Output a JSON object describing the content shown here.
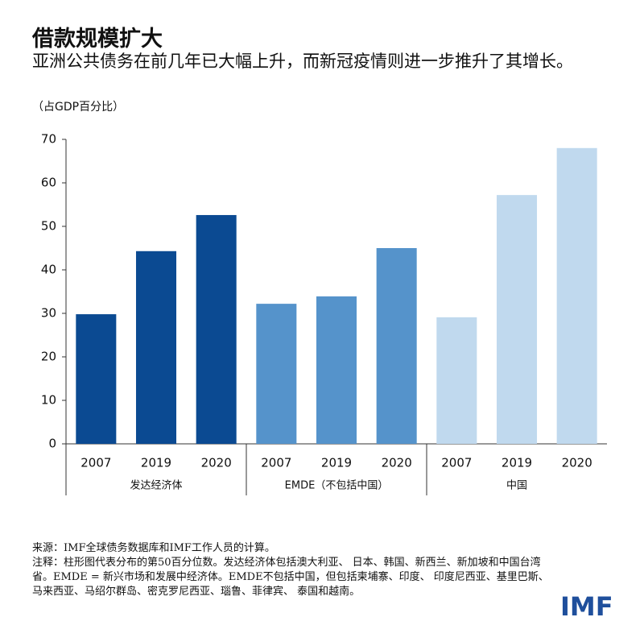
{
  "chart_data": {
    "type": "bar",
    "title": "借款规模扩大",
    "subtitle": "亚洲公共债务在前几年已大幅上升，而新冠疫情则进一步推升了其增长。",
    "unit": "（占GDP百分比）",
    "groups": [
      {
        "name": "发达经济体",
        "color": "#0b4a92",
        "categories": [
          "2007",
          "2019",
          "2020"
        ],
        "values": [
          29.8,
          44.3,
          52.6
        ]
      },
      {
        "name": "EMDE（不包括中国）",
        "color": "#5593cb",
        "categories": [
          "2007",
          "2019",
          "2020"
        ],
        "values": [
          32.2,
          33.9,
          45.0
        ]
      },
      {
        "name": "中国",
        "color": "#c0d9ee",
        "categories": [
          "2007",
          "2019",
          "2020"
        ],
        "values": [
          29.1,
          57.2,
          68.0
        ]
      }
    ],
    "ylim": [
      0,
      70
    ],
    "yticks": [
      0,
      10,
      20,
      30,
      40,
      50,
      60,
      70
    ],
    "grid": false,
    "source": "来源：IMF全球债务数据库和IMF工作人员的计算。",
    "note": "注释：柱形图代表分布的第50百分位数。发达经济体包括澳大利亚、 日本、韩国、新西兰、新加坡和中国台湾省。EMDE = 新兴市场和发展中经济体。EMDE不包括中国，但包括柬埔寨、印度、 印度尼西亚、基里巴斯、马来西亚、马绍尔群岛、密克罗尼西亚、瑙鲁、菲律宾、 泰国和越南。",
    "logo": "IMF"
  }
}
